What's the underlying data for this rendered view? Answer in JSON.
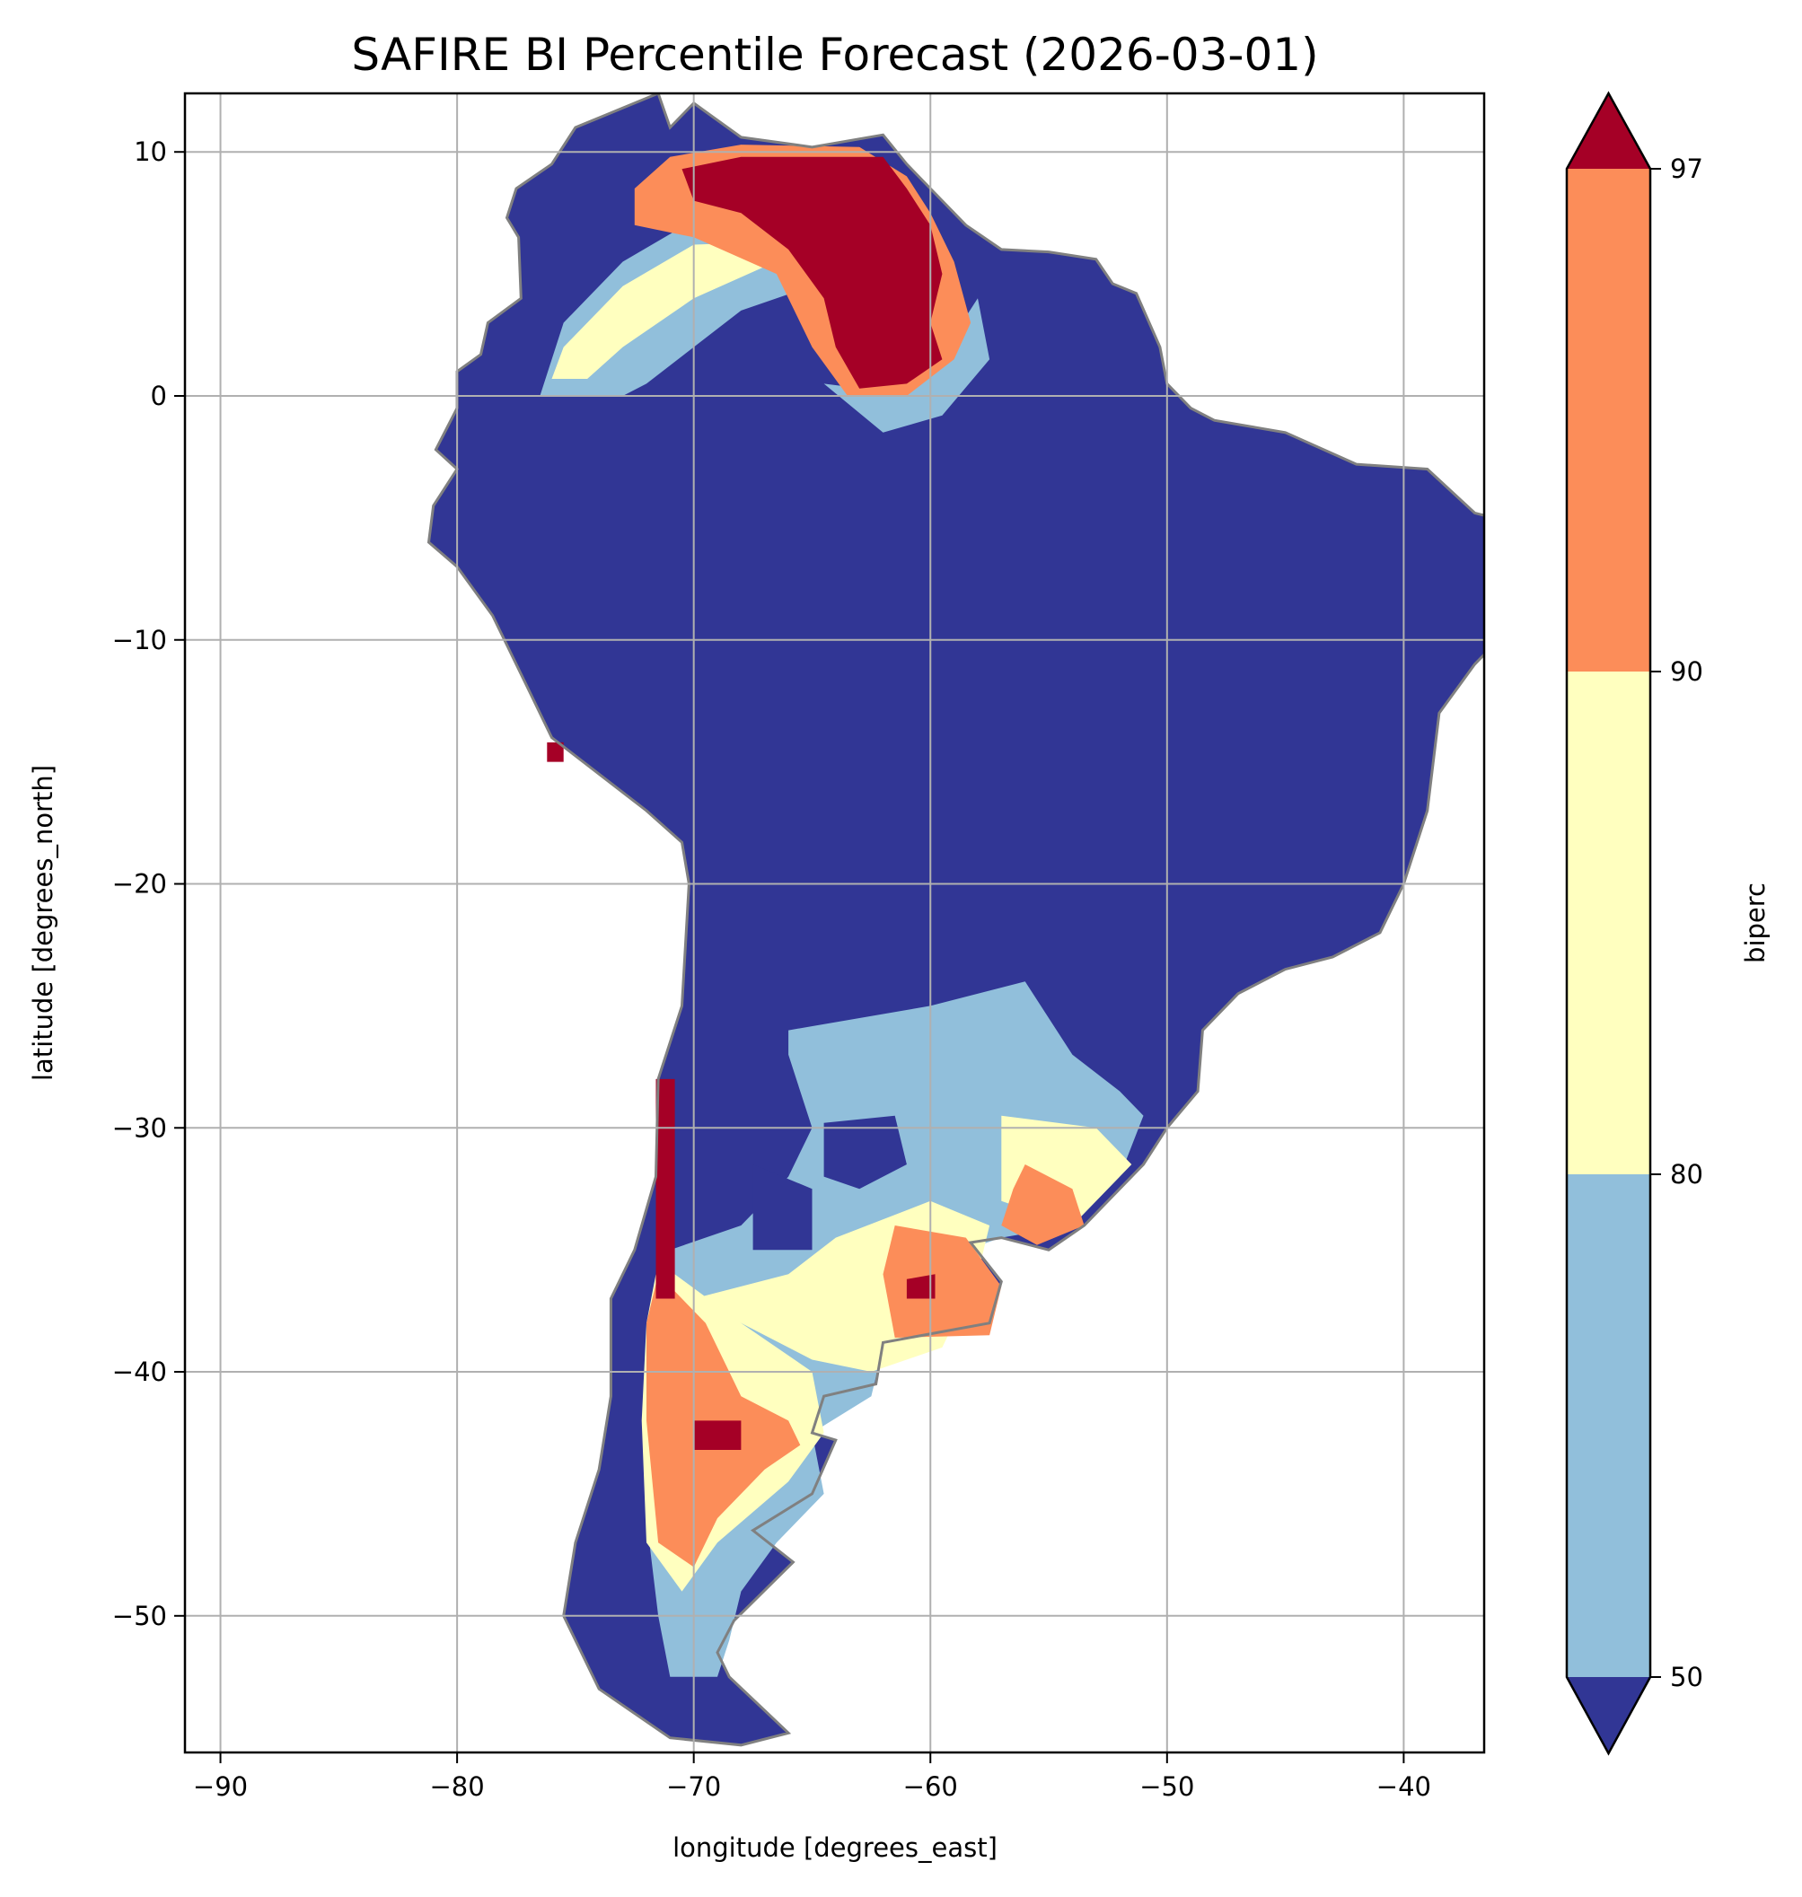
{
  "chart_data": {
    "type": "heatmap",
    "title": "SAFIRE BI Percentile Forecast (2026-03-01)",
    "xlabel": "longitude [degrees_east]",
    "ylabel": "latitude [degrees_north]",
    "xlim": [
      -91.5,
      -36.6
    ],
    "ylim": [
      -55.6,
      12.4
    ],
    "xticks": [
      -90,
      -80,
      -70,
      -60,
      -50,
      -40
    ],
    "yticks": [
      10,
      0,
      -10,
      -20,
      -30,
      -40,
      -50
    ],
    "xtick_labels": [
      "−90",
      "−80",
      "−70",
      "−60",
      "−50",
      "−40"
    ],
    "ytick_labels": [
      "10",
      "0",
      "−10",
      "−20",
      "−30",
      "−40",
      "−50"
    ],
    "grid": true,
    "colorbar": {
      "label": "biperc",
      "levels": [
        50,
        80,
        90,
        97
      ],
      "level_labels": [
        "50",
        "80",
        "90",
        "97"
      ],
      "extend": "both",
      "bins": [
        {
          "range": "<50",
          "color": "#313695"
        },
        {
          "range": "50-80",
          "color": "#91bfdb"
        },
        {
          "range": "80-90",
          "color": "#ffffbf"
        },
        {
          "range": "90-97",
          "color": "#fc8d59"
        },
        {
          "range": ">97",
          "color": "#a50026"
        }
      ]
    },
    "border_color": "#808080",
    "land_outline": [
      [
        -77.5,
        8.5
      ],
      [
        -76,
        9.5
      ],
      [
        -75,
        11
      ],
      [
        -73,
        11.8
      ],
      [
        -71.5,
        12.4
      ],
      [
        -71,
        11
      ],
      [
        -70,
        12
      ],
      [
        -68,
        10.6
      ],
      [
        -65,
        10.2
      ],
      [
        -62,
        10.7
      ],
      [
        -61,
        9.5
      ],
      [
        -60,
        8.5
      ],
      [
        -58.5,
        7
      ],
      [
        -57,
        6
      ],
      [
        -55,
        5.9
      ],
      [
        -53,
        5.6
      ],
      [
        -52.3,
        4.6
      ],
      [
        -51.3,
        4.2
      ],
      [
        -50.3,
        2
      ],
      [
        -50,
        0.5
      ],
      [
        -49,
        -0.5
      ],
      [
        -48,
        -1
      ],
      [
        -45,
        -1.5
      ],
      [
        -42,
        -2.8
      ],
      [
        -39,
        -3
      ],
      [
        -37,
        -4.8
      ],
      [
        -35,
        -5.3
      ],
      [
        -34.8,
        -7.5
      ],
      [
        -35,
        -9
      ],
      [
        -37,
        -11
      ],
      [
        -38.5,
        -13
      ],
      [
        -39,
        -17
      ],
      [
        -40,
        -20
      ],
      [
        -41,
        -22
      ],
      [
        -43,
        -23
      ],
      [
        -45,
        -23.5
      ],
      [
        -47,
        -24.5
      ],
      [
        -48.5,
        -26
      ],
      [
        -48.7,
        -28.5
      ],
      [
        -50,
        -30
      ],
      [
        -51,
        -31.5
      ],
      [
        -52.5,
        -33
      ],
      [
        -53.5,
        -34
      ],
      [
        -55,
        -35
      ],
      [
        -57,
        -34.5
      ],
      [
        -58.3,
        -34.7
      ],
      [
        -57,
        -36.3
      ],
      [
        -57.5,
        -38
      ],
      [
        -62,
        -38.8
      ],
      [
        -62.3,
        -40.5
      ],
      [
        -64.5,
        -41
      ],
      [
        -65,
        -42.5
      ],
      [
        -64,
        -42.8
      ],
      [
        -65,
        -45
      ],
      [
        -67.5,
        -46.5
      ],
      [
        -65.8,
        -47.8
      ],
      [
        -68.3,
        -50.2
      ],
      [
        -69,
        -51.5
      ],
      [
        -68.5,
        -52.5
      ],
      [
        -66,
        -54.8
      ],
      [
        -68,
        -55.3
      ],
      [
        -71,
        -55
      ],
      [
        -74,
        -53
      ],
      [
        -75.5,
        -50
      ],
      [
        -75,
        -47
      ],
      [
        -74,
        -44
      ],
      [
        -73.5,
        -41
      ],
      [
        -73.5,
        -37
      ],
      [
        -72.5,
        -35
      ],
      [
        -71.6,
        -32
      ],
      [
        -71.5,
        -28
      ],
      [
        -70.5,
        -25
      ],
      [
        -70.2,
        -20
      ],
      [
        -70.5,
        -18.3
      ],
      [
        -72,
        -17
      ],
      [
        -76,
        -14
      ],
      [
        -77,
        -12
      ],
      [
        -78.5,
        -9
      ],
      [
        -80,
        -7
      ],
      [
        -81.2,
        -6
      ],
      [
        -81,
        -4.5
      ],
      [
        -80,
        -3
      ],
      [
        -80.9,
        -2.2
      ],
      [
        -80,
        -0.5
      ],
      [
        -80,
        1
      ],
      [
        -79,
        1.7
      ],
      [
        -78.7,
        3
      ],
      [
        -77.3,
        4
      ],
      [
        -77.4,
        6.5
      ],
      [
        -77.9,
        7.3
      ]
    ],
    "regions": [
      {
        "bin": "50-80",
        "polygon": [
          [
            -76.5,
            0
          ],
          [
            -75.5,
            3
          ],
          [
            -73,
            5.5
          ],
          [
            -70,
            7.2
          ],
          [
            -66,
            7
          ],
          [
            -65,
            4.5
          ],
          [
            -68,
            3.5
          ],
          [
            -70,
            2
          ],
          [
            -72,
            0.5
          ],
          [
            -73,
            0
          ]
        ]
      },
      {
        "bin": "50-80",
        "polygon": [
          [
            -64.5,
            0.5
          ],
          [
            -62,
            -1.5
          ],
          [
            -59.5,
            -0.8
          ],
          [
            -57.5,
            1.5
          ],
          [
            -58,
            4
          ],
          [
            -60,
            1
          ],
          [
            -62,
            0.2
          ]
        ]
      },
      {
        "bin": "80-90",
        "polygon": [
          [
            -75.5,
            2
          ],
          [
            -73,
            4.5
          ],
          [
            -70,
            6.2
          ],
          [
            -67,
            6.3
          ],
          [
            -67,
            5.3
          ],
          [
            -70,
            4
          ],
          [
            -73,
            2
          ],
          [
            -74.5,
            0.7
          ],
          [
            -76,
            0.7
          ]
        ]
      },
      {
        "bin": "90-97",
        "polygon": [
          [
            -71,
            9.8
          ],
          [
            -68,
            10.3
          ],
          [
            -63,
            10.2
          ],
          [
            -61,
            9
          ],
          [
            -60,
            7.5
          ],
          [
            -59,
            5.5
          ],
          [
            -58.3,
            3
          ],
          [
            -59,
            1.5
          ],
          [
            -61,
            0
          ],
          [
            -63.5,
            0
          ],
          [
            -65,
            2
          ],
          [
            -66.5,
            5
          ],
          [
            -70,
            6.5
          ],
          [
            -72.5,
            7
          ],
          [
            -72.5,
            8.5
          ]
        ]
      },
      {
        "bin": ">97",
        "polygon": [
          [
            -68,
            9.8
          ],
          [
            -62,
            9.8
          ],
          [
            -61,
            8.5
          ],
          [
            -60,
            7
          ],
          [
            -59.5,
            5
          ],
          [
            -60,
            3
          ],
          [
            -59.5,
            1.5
          ],
          [
            -61,
            0.5
          ],
          [
            -63,
            0.3
          ],
          [
            -64,
            2
          ],
          [
            -64.5,
            4
          ],
          [
            -66,
            6
          ],
          [
            -68,
            7.5
          ],
          [
            -70,
            8
          ],
          [
            -70.5,
            9.3
          ]
        ]
      },
      {
        "bin": "50-80",
        "polygon": [
          [
            -66,
            -26
          ],
          [
            -60,
            -25
          ],
          [
            -56,
            -24
          ],
          [
            -54,
            -27
          ],
          [
            -52,
            -28.5
          ],
          [
            -51,
            -29.5
          ],
          [
            -52,
            -32
          ],
          [
            -54,
            -34
          ],
          [
            -57,
            -34.5
          ],
          [
            -58.5,
            -35
          ],
          [
            -57,
            -36.5
          ],
          [
            -57.5,
            -38
          ],
          [
            -62,
            -39
          ],
          [
            -62.5,
            -41
          ],
          [
            -65,
            -42.5
          ],
          [
            -64.5,
            -45
          ],
          [
            -66.5,
            -47
          ],
          [
            -68,
            -49
          ],
          [
            -68.5,
            -51
          ],
          [
            -69,
            -52.5
          ],
          [
            -71,
            -52.5
          ],
          [
            -71.5,
            -50
          ],
          [
            -72,
            -46
          ],
          [
            -72,
            -42
          ],
          [
            -71.5,
            -38
          ],
          [
            -71,
            -35
          ],
          [
            -68,
            -34
          ],
          [
            -66,
            -32
          ],
          [
            -65,
            -30
          ],
          [
            -66,
            -27
          ]
        ]
      },
      {
        "bin": "<50",
        "polygon": [
          [
            -64.5,
            -29.8
          ],
          [
            -61.5,
            -29.5
          ],
          [
            -61,
            -31.5
          ],
          [
            -63,
            -32.5
          ],
          [
            -64.5,
            -32
          ]
        ]
      },
      {
        "bin": "<50",
        "polygon": [
          [
            -67.5,
            -31.5
          ],
          [
            -65,
            -32.5
          ],
          [
            -65,
            -35
          ],
          [
            -67.5,
            -35
          ]
        ]
      },
      {
        "bin": "80-90",
        "polygon": [
          [
            -64,
            -34.5
          ],
          [
            -60,
            -33
          ],
          [
            -57.5,
            -34
          ],
          [
            -58,
            -36
          ],
          [
            -59.5,
            -39
          ],
          [
            -62.5,
            -40
          ],
          [
            -65,
            -39.5
          ],
          [
            -68,
            -38
          ],
          [
            -70,
            -37
          ],
          [
            -66,
            -36
          ]
        ]
      },
      {
        "bin": "90-97",
        "polygon": [
          [
            -61.5,
            -34
          ],
          [
            -58.5,
            -34.5
          ],
          [
            -57,
            -36.5
          ],
          [
            -57.5,
            -38.5
          ],
          [
            -61.5,
            -38.6
          ],
          [
            -62,
            -36
          ]
        ]
      },
      {
        "bin": "80-90",
        "polygon": [
          [
            -57,
            -29.5
          ],
          [
            -53,
            -30
          ],
          [
            -51.5,
            -31.5
          ],
          [
            -54,
            -34
          ],
          [
            -57,
            -33
          ]
        ]
      },
      {
        "bin": "90-97",
        "polygon": [
          [
            -56,
            -31.5
          ],
          [
            -54,
            -32.5
          ],
          [
            -53.5,
            -34
          ],
          [
            -55.5,
            -34.8
          ],
          [
            -57,
            -34
          ],
          [
            -56.5,
            -32.5
          ]
        ]
      },
      {
        "bin": "80-90",
        "polygon": [
          [
            -71.5,
            -35.5
          ],
          [
            -68,
            -38
          ],
          [
            -65,
            -40
          ],
          [
            -64.5,
            -42.5
          ],
          [
            -66,
            -44.5
          ],
          [
            -69,
            -47
          ],
          [
            -70.5,
            -49
          ],
          [
            -72,
            -47
          ],
          [
            -72.2,
            -42
          ],
          [
            -72,
            -38
          ]
        ]
      },
      {
        "bin": "90-97",
        "polygon": [
          [
            -71.5,
            -36
          ],
          [
            -69.5,
            -38
          ],
          [
            -68,
            -41
          ],
          [
            -66,
            -42
          ],
          [
            -65.5,
            -43
          ],
          [
            -67,
            -44
          ],
          [
            -69,
            -46
          ],
          [
            -70,
            -48
          ],
          [
            -71.5,
            -47
          ],
          [
            -72,
            -42
          ],
          [
            -72,
            -38
          ]
        ]
      },
      {
        "bin": ">97",
        "polygon": [
          [
            -71.6,
            -28
          ],
          [
            -70.8,
            -28
          ],
          [
            -70.8,
            -37
          ],
          [
            -71.6,
            -37
          ]
        ]
      },
      {
        "bin": ">97",
        "polygon": [
          [
            -70,
            -42
          ],
          [
            -68,
            -42
          ],
          [
            -68,
            -43.2
          ],
          [
            -70,
            -43.2
          ]
        ]
      },
      {
        "bin": ">97",
        "polygon": [
          [
            -61,
            -36.2
          ],
          [
            -59.8,
            -36
          ],
          [
            -59.8,
            -37
          ],
          [
            -61,
            -37
          ]
        ]
      },
      {
        "bin": ">97",
        "polygon": [
          [
            -76.2,
            -14.2
          ],
          [
            -75.5,
            -14.2
          ],
          [
            -75.5,
            -15
          ],
          [
            -76.2,
            -15
          ]
        ]
      }
    ]
  }
}
